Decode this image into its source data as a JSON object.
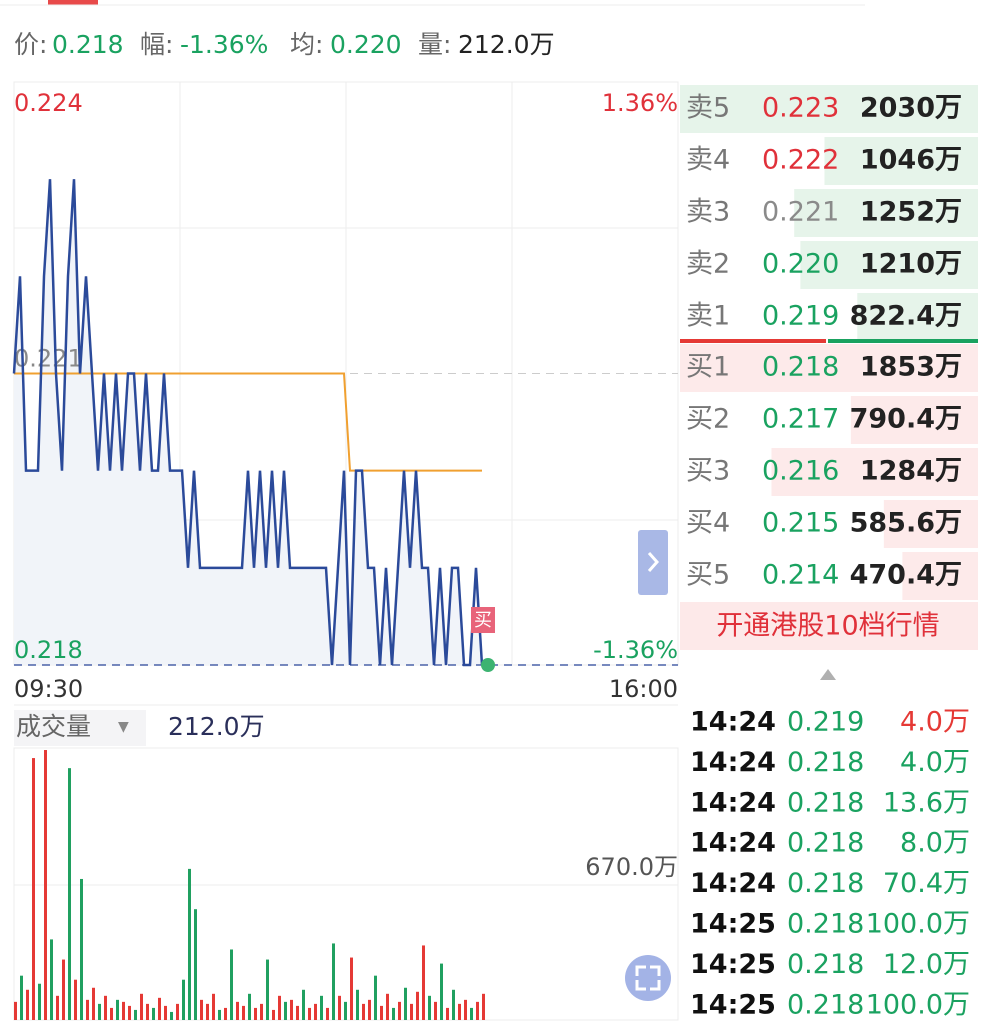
{
  "header": {
    "items": [
      {
        "label": "价:",
        "value": "0.218",
        "color": "#1aa260"
      },
      {
        "label": "幅:",
        "value": "-1.36%",
        "color": "#1aa260"
      },
      {
        "label": "均:",
        "value": "0.220",
        "color": "#1aa260"
      },
      {
        "label": "量:",
        "value": "212.0万",
        "color": "#222222"
      }
    ]
  },
  "chart_data": [
    {
      "type": "line",
      "ylim": [
        0.218,
        0.224
      ],
      "yticks": [
        0.224,
        0.221,
        0.218
      ],
      "ytick_colors": [
        "#e0313a",
        "#888888",
        "#1aa260"
      ],
      "y2lim": [
        -1.36,
        1.36
      ],
      "y2ticks": [
        {
          "value": 1.36,
          "label": "1.36%"
        },
        {
          "value": -1.36,
          "label": "-1.36%"
        }
      ],
      "y2tick_colors": [
        "#e0313a",
        "#1aa260"
      ],
      "x_labels": [
        "09:30",
        "16:00"
      ],
      "marker": "买",
      "series": [
        {
          "color": "#2b4a9a",
          "values": [
            0.221,
            0.222,
            0.22,
            0.22,
            0.22,
            0.222,
            0.223,
            0.221,
            0.22,
            0.222,
            0.223,
            0.221,
            0.222,
            0.221,
            0.22,
            0.221,
            0.22,
            0.221,
            0.22,
            0.221,
            0.221,
            0.22,
            0.221,
            0.22,
            0.22,
            0.221,
            0.22,
            0.22,
            0.22,
            0.219,
            0.22,
            0.219,
            0.219,
            0.219,
            0.219,
            0.219,
            0.219,
            0.219,
            0.219,
            0.22,
            0.219,
            0.22,
            0.219,
            0.22,
            0.219,
            0.22,
            0.219,
            0.219,
            0.219,
            0.219,
            0.219,
            0.219,
            0.219,
            0.218,
            0.219,
            0.22,
            0.218,
            0.22,
            0.22,
            0.219,
            0.219,
            0.218,
            0.219,
            0.218,
            0.219,
            0.22,
            0.219,
            0.22,
            0.219,
            0.219,
            0.218,
            0.219,
            0.218,
            0.219,
            0.219,
            0.218,
            0.218,
            0.219,
            0.218
          ]
        },
        {
          "color": "#f0a030",
          "values": [
            0.221,
            0.221,
            0.221,
            0.221,
            0.221,
            0.221,
            0.221,
            0.221,
            0.221,
            0.221,
            0.221,
            0.221,
            0.221,
            0.221,
            0.221,
            0.221,
            0.221,
            0.221,
            0.221,
            0.221,
            0.221,
            0.221,
            0.221,
            0.221,
            0.221,
            0.221,
            0.221,
            0.221,
            0.221,
            0.221,
            0.221,
            0.221,
            0.221,
            0.221,
            0.221,
            0.221,
            0.221,
            0.221,
            0.221,
            0.221,
            0.221,
            0.221,
            0.221,
            0.221,
            0.221,
            0.221,
            0.221,
            0.221,
            0.221,
            0.221,
            0.221,
            0.221,
            0.221,
            0.221,
            0.221,
            0.221,
            0.22,
            0.22,
            0.22,
            0.22,
            0.22,
            0.22,
            0.22,
            0.22,
            0.22,
            0.22,
            0.22,
            0.22,
            0.22,
            0.22,
            0.22,
            0.22,
            0.22,
            0.22,
            0.22,
            0.22,
            0.22,
            0.22,
            0.22
          ]
        }
      ]
    },
    {
      "type": "bar",
      "title": "成交量",
      "dropdown": "▼",
      "total": "212.0万",
      "ylim": [
        0,
        1350
      ],
      "yticks": [
        {
          "value": 670,
          "label": "670.0万"
        }
      ],
      "series": [
        {
          "color": "#e53935",
          "values": [
            90,
            null,
            150,
            1300,
            null,
            1340,
            null,
            120,
            300,
            null,
            200,
            null,
            100,
            160,
            null,
            120,
            60,
            null,
            90,
            70,
            null,
            130,
            80,
            null,
            110,
            70,
            null,
            80,
            null,
            null,
            null,
            100,
            80,
            130,
            null,
            60,
            null,
            90,
            70,
            null,
            60,
            80,
            null,
            50,
            120,
            null,
            100,
            70,
            null,
            60,
            80,
            null,
            60,
            null,
            120,
            null,
            310,
            null,
            80,
            100,
            null,
            70,
            130,
            null,
            90,
            null,
            80,
            140,
            370,
            null,
            90,
            null,
            60,
            null,
            80,
            100,
            null,
            90,
            130
          ]
        },
        {
          "color": "#20a060",
          "values": [
            null,
            220,
            null,
            null,
            180,
            null,
            400,
            null,
            null,
            1250,
            null,
            700,
            null,
            null,
            80,
            null,
            null,
            100,
            null,
            null,
            50,
            null,
            null,
            60,
            null,
            null,
            40,
            null,
            200,
            750,
            550,
            null,
            null,
            null,
            50,
            null,
            350,
            null,
            null,
            130,
            null,
            null,
            300,
            null,
            null,
            90,
            null,
            null,
            150,
            null,
            null,
            120,
            null,
            380,
            null,
            90,
            null,
            150,
            null,
            null,
            220,
            null,
            null,
            60,
            null,
            160,
            null,
            null,
            null,
            120,
            null,
            280,
            null,
            150,
            null,
            null,
            60,
            null,
            null
          ]
        }
      ]
    }
  ],
  "order_book": {
    "asks": [
      {
        "label": "卖5",
        "price": "0.223",
        "price_color": "#e0313a",
        "volume": 2030,
        "volume_label": "2030万"
      },
      {
        "label": "卖4",
        "price": "0.222",
        "price_color": "#e0313a",
        "volume": 1046,
        "volume_label": "1046万"
      },
      {
        "label": "卖3",
        "price": "0.221",
        "price_color": "#8a8a8a",
        "volume": 1252,
        "volume_label": "1252万"
      },
      {
        "label": "卖2",
        "price": "0.220",
        "price_color": "#1aa260",
        "volume": 1210,
        "volume_label": "1210万"
      },
      {
        "label": "卖1",
        "price": "0.219",
        "price_color": "#1aa260",
        "volume": 822.4,
        "volume_label": "822.4万"
      }
    ],
    "bids": [
      {
        "label": "买1",
        "price": "0.218",
        "price_color": "#1aa260",
        "volume": 1853,
        "volume_label": "1853万"
      },
      {
        "label": "买2",
        "price": "0.217",
        "price_color": "#1aa260",
        "volume": 790.4,
        "volume_label": "790.4万"
      },
      {
        "label": "买3",
        "price": "0.216",
        "price_color": "#1aa260",
        "volume": 1284,
        "volume_label": "1284万"
      },
      {
        "label": "买4",
        "price": "0.215",
        "price_color": "#1aa260",
        "volume": 585.6,
        "volume_label": "585.6万"
      },
      {
        "label": "买5",
        "price": "0.214",
        "price_color": "#1aa260",
        "volume": 470.4,
        "volume_label": "470.4万"
      }
    ],
    "upgrade_banner": "开通港股10档行情"
  },
  "trades": [
    {
      "time": "14:24",
      "price": "0.219",
      "volume": "4.0万",
      "volume_color": "#e53935"
    },
    {
      "time": "14:24",
      "price": "0.218",
      "volume": "4.0万",
      "volume_color": "#1aa260"
    },
    {
      "time": "14:24",
      "price": "0.218",
      "volume": "13.6万",
      "volume_color": "#1aa260"
    },
    {
      "time": "14:24",
      "price": "0.218",
      "volume": "8.0万",
      "volume_color": "#1aa260"
    },
    {
      "time": "14:24",
      "price": "0.218",
      "volume": "70.4万",
      "volume_color": "#1aa260"
    },
    {
      "time": "14:25",
      "price": "0.218",
      "volume": "100.0万",
      "volume_color": "#1aa260"
    },
    {
      "time": "14:25",
      "price": "0.218",
      "volume": "12.0万",
      "volume_color": "#1aa260"
    },
    {
      "time": "14:25",
      "price": "0.218",
      "volume": "100.0万",
      "volume_color": "#1aa260"
    }
  ]
}
